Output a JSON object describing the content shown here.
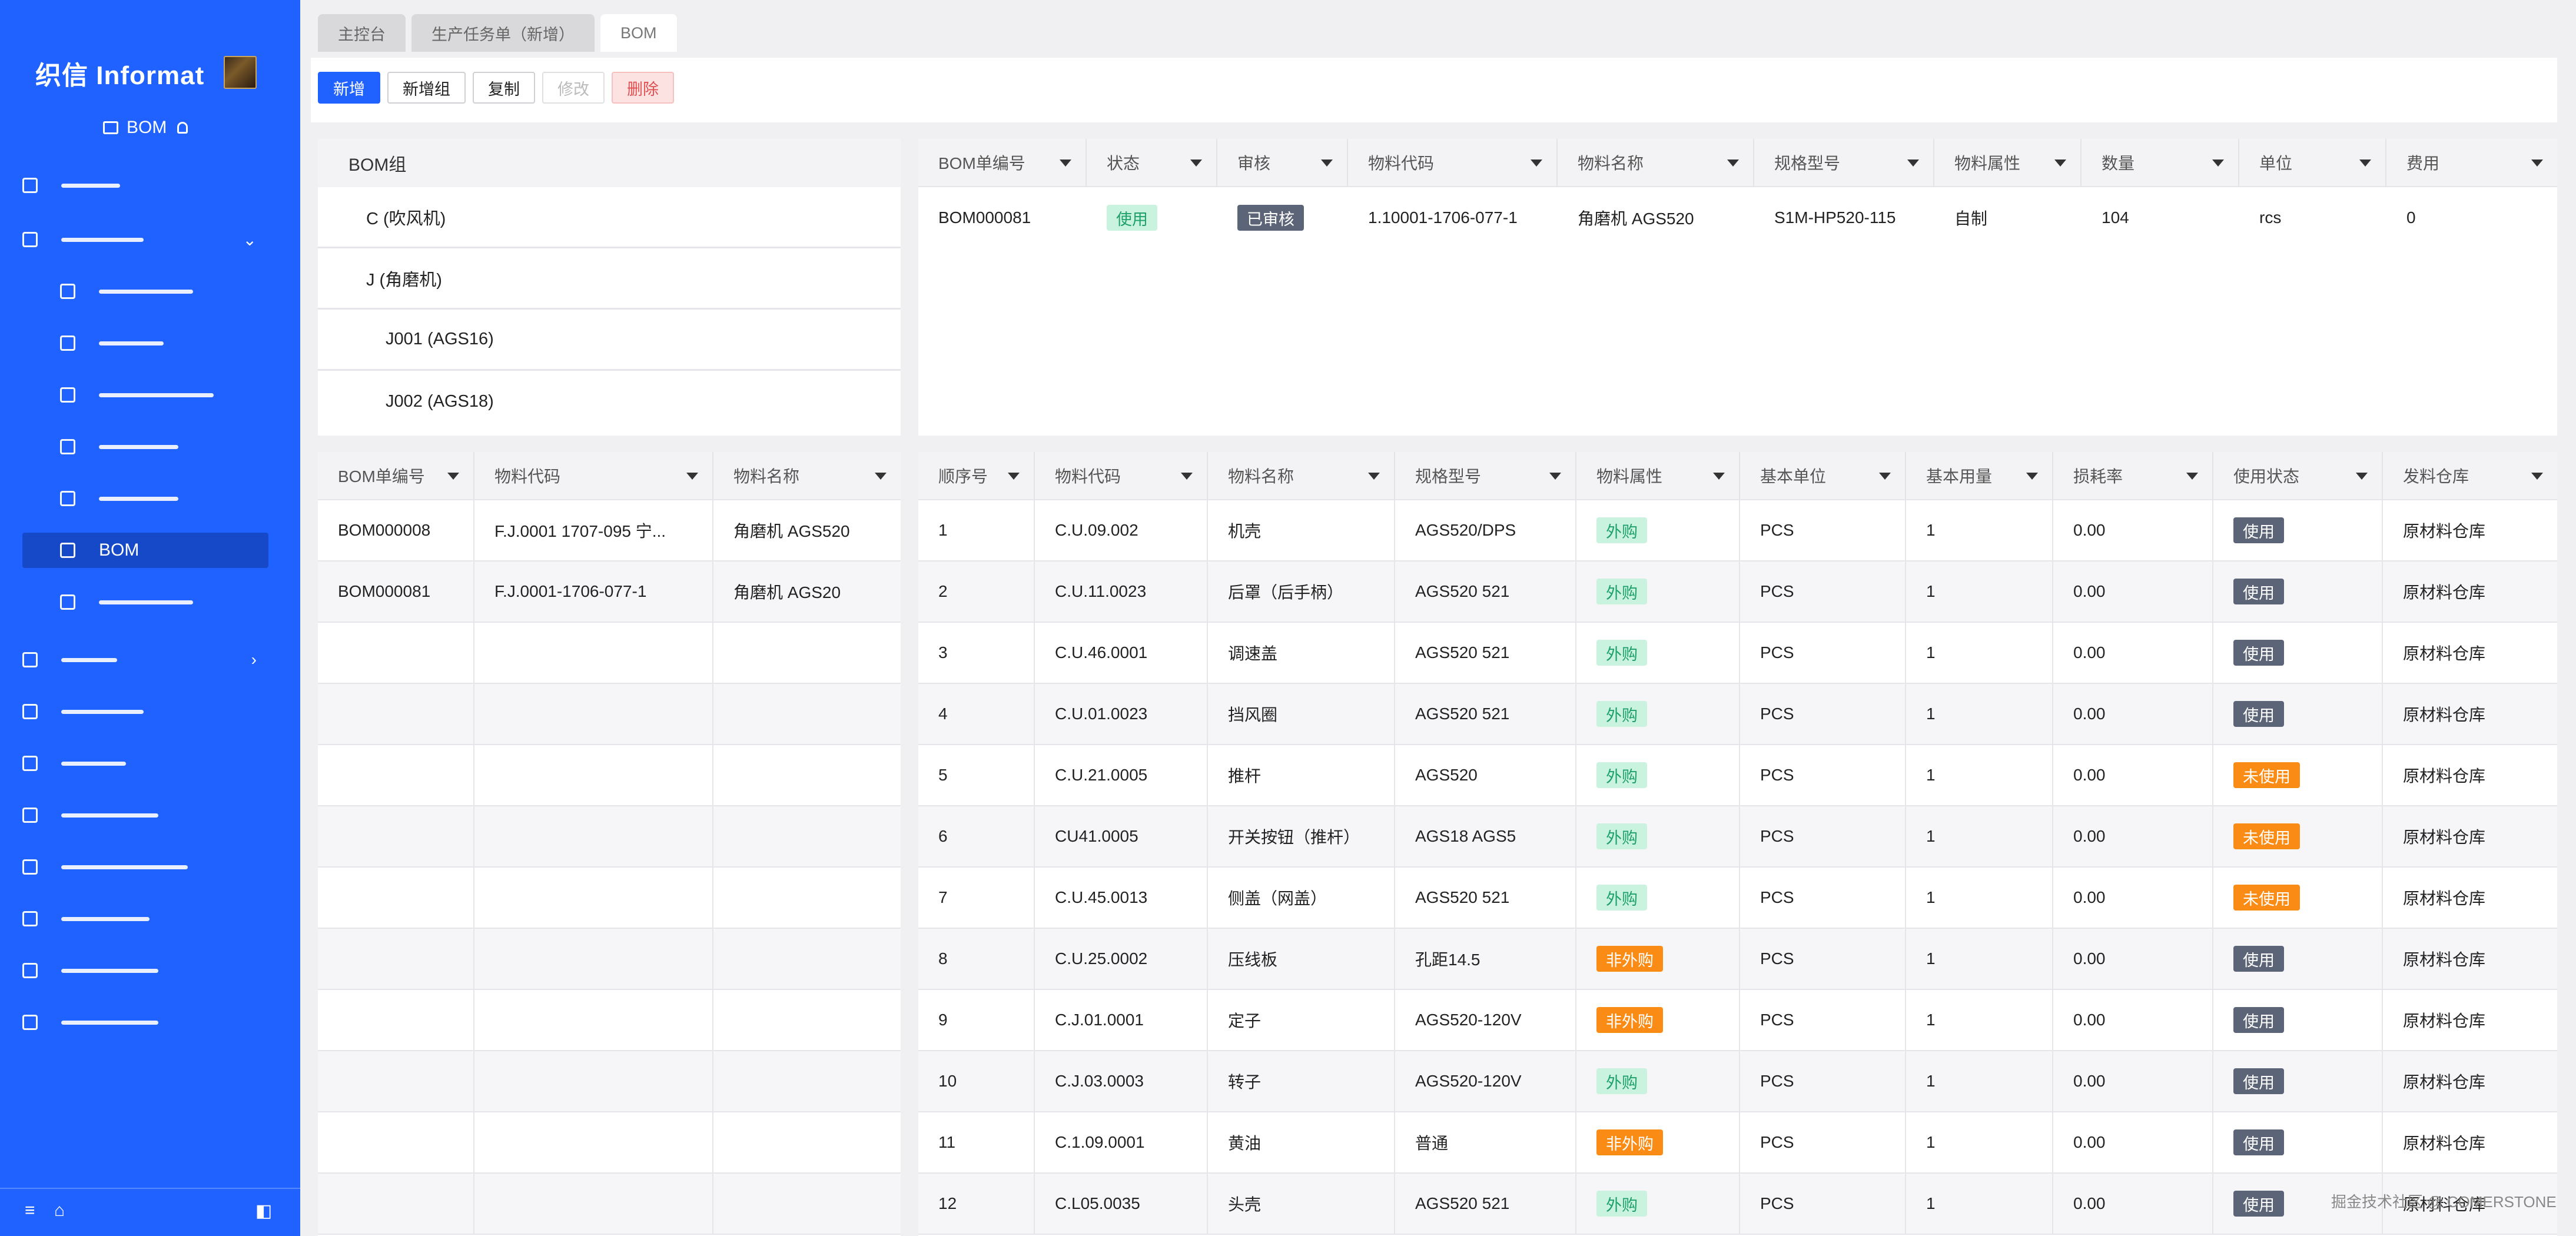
{
  "sidebar": {
    "brand": "织信 Informat",
    "module_title": "BOM",
    "active_item_label": "BOM",
    "colors": {
      "bg": "#1f62ff",
      "active": "#1649c8"
    }
  },
  "tabs": [
    {
      "label": "主控台"
    },
    {
      "label": "生产任务单（新增）"
    },
    {
      "label": "BOM"
    }
  ],
  "toolbar": {
    "add": "新增",
    "add_group": "新增组",
    "copy": "复制",
    "edit": "修改",
    "delete": "删除"
  },
  "bom_group": {
    "title": "BOM组",
    "nodes": [
      "C (吹风机)",
      "J (角磨机)",
      "J001 (AGS16)",
      "J002 (AGS18)"
    ]
  },
  "bom_master": {
    "columns": [
      "BOM单编号",
      "状态",
      "审核",
      "物料代码",
      "物料名称",
      "规格型号",
      "物料属性",
      "数量",
      "单位",
      "费用"
    ],
    "row": {
      "id": "BOM000081",
      "status": "使用",
      "audit": "已审核",
      "code": "1.10001-1706-077-1",
      "name": "角磨机 AGS520",
      "spec": "S1M-HP520-115",
      "attr": "自制",
      "qty": "104",
      "unit": "rcs",
      "cost": "0"
    }
  },
  "bom_list": {
    "columns": [
      "BOM单编号",
      "物料代码",
      "物料名称"
    ],
    "rows": [
      {
        "id": "BOM000008",
        "code": "F.J.0001  1707-095  宁...",
        "name": "角磨机  AGS520"
      },
      {
        "id": "BOM000081",
        "code": "F.J.0001-1706-077-1",
        "name": "角磨机  AGS20"
      }
    ]
  },
  "bom_detail": {
    "columns": [
      "顺序号",
      "物料代码",
      "物料名称",
      "规格型号",
      "物料属性",
      "基本单位",
      "基本用量",
      "损耗率",
      "使用状态",
      "发料仓库"
    ],
    "rows": [
      {
        "seq": "1",
        "code": "C.U.09.002",
        "name": "机壳",
        "spec": "AGS520/DPS",
        "attr": "外购",
        "unit": "PCS",
        "qty": "1",
        "loss": "0.00",
        "state": "使用",
        "wh": "原材料仓库"
      },
      {
        "seq": "2",
        "code": "C.U.11.0023",
        "name": "后罩（后手柄）",
        "spec": "AGS520 521",
        "attr": "外购",
        "unit": "PCS",
        "qty": "1",
        "loss": "0.00",
        "state": "使用",
        "wh": "原材料仓库"
      },
      {
        "seq": "3",
        "code": "C.U.46.0001",
        "name": "调速盖",
        "spec": "AGS520 521",
        "attr": "外购",
        "unit": "PCS",
        "qty": "1",
        "loss": "0.00",
        "state": "使用",
        "wh": "原材料仓库"
      },
      {
        "seq": "4",
        "code": "C.U.01.0023",
        "name": "挡风圈",
        "spec": "AGS520 521",
        "attr": "外购",
        "unit": "PCS",
        "qty": "1",
        "loss": "0.00",
        "state": "使用",
        "wh": "原材料仓库"
      },
      {
        "seq": "5",
        "code": "C.U.21.0005",
        "name": "推杆",
        "spec": "AGS520",
        "attr": "外购",
        "unit": "PCS",
        "qty": "1",
        "loss": "0.00",
        "state": "未使用",
        "wh": "原材料仓库"
      },
      {
        "seq": "6",
        "code": "CU41.0005",
        "name": "开关按钮（推杆）",
        "spec": "AGS18 AGS5",
        "attr": "外购",
        "unit": "PCS",
        "qty": "1",
        "loss": "0.00",
        "state": "未使用",
        "wh": "原材料仓库"
      },
      {
        "seq": "7",
        "code": "C.U.45.0013",
        "name": "侧盖（网盖）",
        "spec": "AGS520 521",
        "attr": "外购",
        "unit": "PCS",
        "qty": "1",
        "loss": "0.00",
        "state": "未使用",
        "wh": "原材料仓库"
      },
      {
        "seq": "8",
        "code": "C.U.25.0002",
        "name": "压线板",
        "spec": "孔距14.5",
        "attr": "非外购",
        "unit": "PCS",
        "qty": "1",
        "loss": "0.00",
        "state": "使用",
        "wh": "原材料仓库"
      },
      {
        "seq": "9",
        "code": "C.J.01.0001",
        "name": "定子",
        "spec": "AGS520-120V",
        "attr": "非外购",
        "unit": "PCS",
        "qty": "1",
        "loss": "0.00",
        "state": "使用",
        "wh": "原材料仓库"
      },
      {
        "seq": "10",
        "code": "C.J.03.0003",
        "name": "转子",
        "spec": "AGS520-120V",
        "attr": "外购",
        "unit": "PCS",
        "qty": "1",
        "loss": "0.00",
        "state": "使用",
        "wh": "原材料仓库"
      },
      {
        "seq": "11",
        "code": "C.1.09.0001",
        "name": "黄油",
        "spec": "普通",
        "attr": "非外购",
        "unit": "PCS",
        "qty": "1",
        "loss": "0.00",
        "state": "使用",
        "wh": "原材料仓库"
      },
      {
        "seq": "12",
        "code": "C.L05.0035",
        "name": "头壳",
        "spec": "AGS520 521",
        "attr": "外购",
        "unit": "PCS",
        "qty": "1",
        "loss": "0.00",
        "state": "使用",
        "wh": "原材料仓库"
      }
    ]
  },
  "watermark": "掘金技术社区 @ COMERSTONE"
}
